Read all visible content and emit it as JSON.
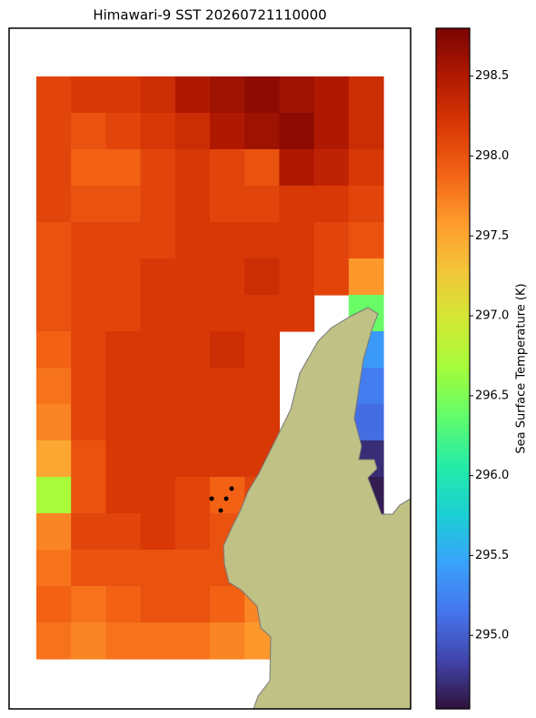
{
  "chart_data": {
    "type": "heatmap",
    "title": "Himawari-9 SST 20260721110000",
    "colorbar_label": "Sea Surface Temperature (K)",
    "clim": [
      294.54,
      298.8
    ],
    "colorbar_ticks": [
      {
        "value": 295,
        "label": "295.0"
      },
      295.5,
      {
        "value": 296,
        "label": "296.0"
      },
      296.5,
      {
        "value": 297,
        "label": "297.0"
      },
      297.5,
      {
        "value": 298,
        "label": "298.0"
      },
      298.5
    ],
    "colormap": [
      "#30123b",
      "#4145ab",
      "#4675ed",
      "#39a2fc",
      "#1bcfd4",
      "#24eca6",
      "#61fc6c",
      "#a4fc3b",
      "#d1e834",
      "#f3c63a",
      "#fe9b2d",
      "#f36315",
      "#d93806",
      "#b11901",
      "#7a0403"
    ],
    "land_color": "#bfc185",
    "grid": [
      [
        298.1,
        298.2,
        298.2,
        298.3,
        298.5,
        298.6,
        298.7,
        298.6,
        298.5,
        298.3
      ],
      [
        298.1,
        298.0,
        298.1,
        298.2,
        298.3,
        298.5,
        298.6,
        298.7,
        298.5,
        298.3
      ],
      [
        298.1,
        297.9,
        297.9,
        298.1,
        298.2,
        298.1,
        298.0,
        298.5,
        298.4,
        298.2
      ],
      [
        298.1,
        298.0,
        298.0,
        298.1,
        298.2,
        298.1,
        298.1,
        298.2,
        298.2,
        298.1
      ],
      [
        298.0,
        298.1,
        298.1,
        298.1,
        298.2,
        298.2,
        298.2,
        298.2,
        298.1,
        298.0
      ],
      [
        298.0,
        298.1,
        298.1,
        298.2,
        298.2,
        298.2,
        298.3,
        298.2,
        298.1,
        297.6
      ],
      [
        298.0,
        298.1,
        298.1,
        298.2,
        298.2,
        298.2,
        298.2,
        298.2,
        null,
        296.4
      ],
      [
        297.9,
        298.1,
        298.2,
        298.2,
        298.2,
        298.3,
        298.2,
        null,
        null,
        295.4
      ],
      [
        297.8,
        298.1,
        298.2,
        298.2,
        298.2,
        298.2,
        298.2,
        null,
        null,
        295.2
      ],
      [
        297.7,
        298.1,
        298.2,
        298.2,
        298.2,
        298.2,
        298.2,
        null,
        null,
        295.1
      ],
      [
        297.5,
        298.0,
        298.2,
        298.2,
        298.2,
        298.2,
        298.2,
        null,
        null,
        294.7
      ],
      [
        296.7,
        298.0,
        298.2,
        298.2,
        298.1,
        297.9,
        298.1,
        null,
        null,
        294.6
      ],
      [
        297.7,
        298.1,
        298.1,
        298.2,
        298.1,
        298.0,
        298.0,
        null,
        null,
        null
      ],
      [
        297.8,
        298.0,
        298.0,
        298.0,
        298.0,
        298.0,
        null,
        null,
        null,
        null
      ],
      [
        297.9,
        297.8,
        297.9,
        298.0,
        298.0,
        297.9,
        297.7,
        null,
        null,
        null
      ],
      [
        297.8,
        297.7,
        297.8,
        297.8,
        297.8,
        297.7,
        297.6,
        null,
        null,
        null
      ]
    ]
  }
}
